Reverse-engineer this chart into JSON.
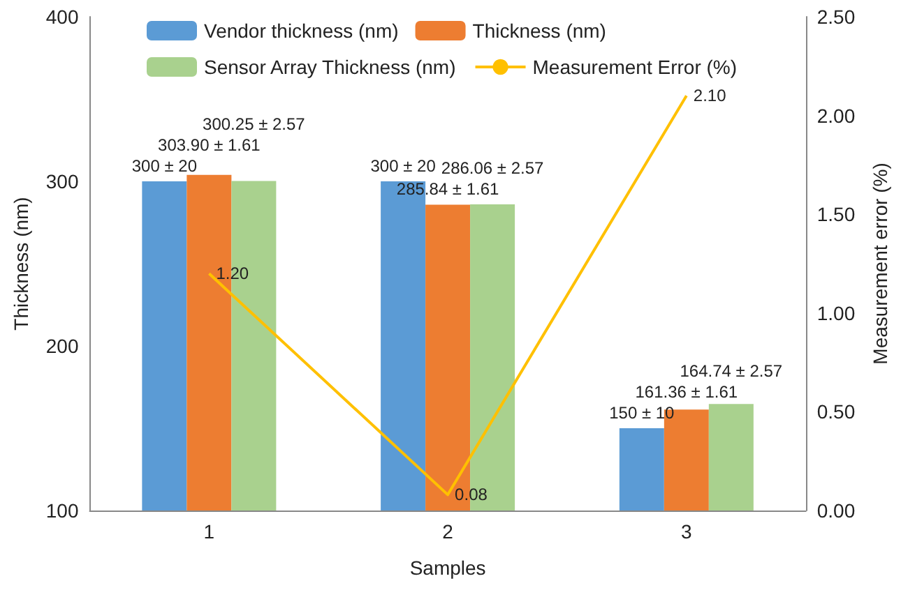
{
  "chart_data": {
    "type": "bar",
    "categories": [
      "1",
      "2",
      "3"
    ],
    "xlabel": "Samples",
    "ylabel": "Thickness (nm)",
    "y2label": "Measurement error (%)",
    "ylim": [
      100,
      400
    ],
    "yticks": [
      100,
      200,
      300,
      400
    ],
    "y2lim": [
      0,
      2.5
    ],
    "y2ticks": [
      {
        "value": 0,
        "label": "0.00"
      },
      {
        "value": 0.5,
        "label": "0.50"
      },
      {
        "value": 1,
        "label": "1.00"
      },
      {
        "value": 1.5,
        "label": "1.50"
      },
      {
        "value": 2,
        "label": "2.00"
      },
      {
        "value": 2.5,
        "label": "2.50"
      }
    ],
    "grid": false,
    "legend": "top",
    "series": [
      {
        "name": "Vendor thickness (nm)",
        "color": "#5b9bd5",
        "values": [
          300,
          300,
          150
        ],
        "value_labels": [
          "300 ± 20",
          "300 ± 20",
          "150 ± 10"
        ]
      },
      {
        "name": "Thickness (nm)",
        "color": "#ed7d31",
        "values": [
          303.9,
          285.84,
          161.36
        ],
        "value_labels": [
          "303.90 ± 1.61",
          "285.84 ± 1.61",
          "161.36 ± 1.61"
        ]
      },
      {
        "name": "Sensor Array Thickness (nm)",
        "color": "#a9d18e",
        "values": [
          300.25,
          286.06,
          164.74
        ],
        "value_labels": [
          "300.25 ± 2.57",
          "286.06 ± 2.57",
          "164.74 ± 2.57"
        ]
      },
      {
        "name": "Measurement Error (%)",
        "type": "line",
        "axis": "y2",
        "color": "#ffc000",
        "values": [
          1.2,
          0.08,
          2.1
        ],
        "value_labels": [
          "1.20",
          "0.08",
          "2.10"
        ]
      }
    ]
  }
}
